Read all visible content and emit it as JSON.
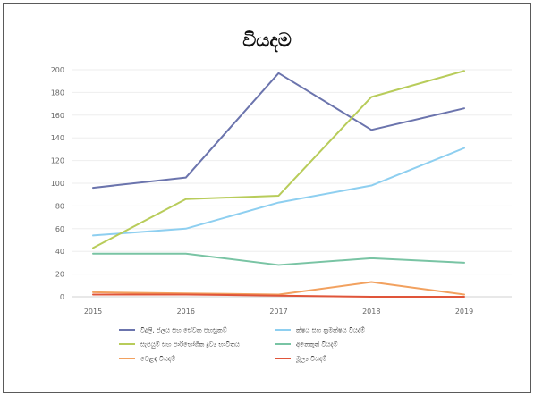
{
  "chart_data": {
    "type": "line",
    "title": "වියදම",
    "xlabel": "",
    "ylabel": "",
    "categories": [
      "2015",
      "2016",
      "2017",
      "2018",
      "2019"
    ],
    "ylim": [
      0,
      200
    ],
    "yticks": [
      "0",
      "20",
      "40",
      "60",
      "80",
      "100",
      "120",
      "140",
      "160",
      "180",
      "200"
    ],
    "grid": true,
    "legend_position": "bottom",
    "series": [
      {
        "name": "විදුලි, ජලය සහ සේවක පහසුකම්",
        "color": "#6b74ad",
        "values": [
          96,
          105,
          197,
          147,
          166
        ]
      },
      {
        "name": "ක්ෂය සහ ක්‍රමක්ෂය වියදම්",
        "color": "#8ecff0",
        "values": [
          54,
          60,
          83,
          98,
          131
        ]
      },
      {
        "name": "සැපයුම් සහ පාරිභෝගික ද්‍රව්‍ය භාවිතය",
        "color": "#b8cc5a",
        "values": [
          43,
          86,
          89,
          176,
          199
        ]
      },
      {
        "name": "අනෙකුත් වියදම්",
        "color": "#79c4a4",
        "values": [
          38,
          38,
          28,
          34,
          30
        ]
      },
      {
        "name": "වෙළඳ වියදම්",
        "color": "#f2a15f",
        "values": [
          4,
          3,
          2,
          13,
          2
        ]
      },
      {
        "name": "මූල්‍ය වියදම්",
        "color": "#e0553a",
        "values": [
          2,
          2,
          1,
          0,
          0
        ]
      }
    ]
  }
}
